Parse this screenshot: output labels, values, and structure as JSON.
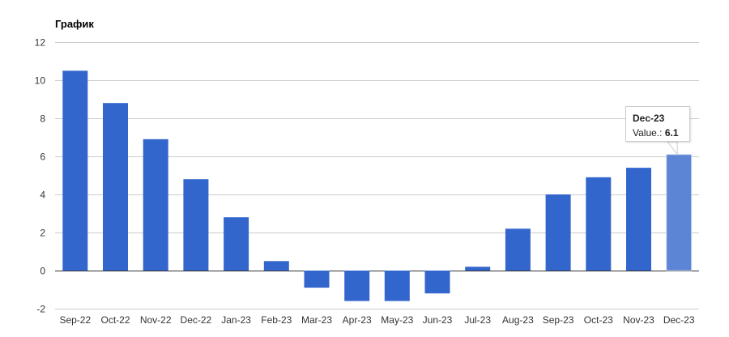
{
  "chart_data": {
    "type": "bar",
    "title": "График",
    "categories": [
      "Sep-22",
      "Oct-22",
      "Nov-22",
      "Dec-22",
      "Jan-23",
      "Feb-23",
      "Mar-23",
      "Apr-23",
      "May-23",
      "Jun-23",
      "Jul-23",
      "Aug-23",
      "Sep-23",
      "Oct-23",
      "Nov-23",
      "Dec-23"
    ],
    "values": [
      10.5,
      8.8,
      6.9,
      4.8,
      2.8,
      0.5,
      -0.9,
      -1.6,
      -1.6,
      -1.2,
      0.2,
      2.2,
      4.0,
      4.9,
      5.4,
      6.1
    ],
    "ylim": [
      -2,
      12
    ],
    "yticks": [
      -2,
      0,
      2,
      4,
      6,
      8,
      10,
      12
    ],
    "grid": true,
    "bar_color": "#3366cc",
    "highlight_color": "#5c85d6",
    "highlighted_index": 15
  },
  "tooltip": {
    "title": "Dec-23",
    "value_label": "Value.:",
    "value": "6.1"
  }
}
